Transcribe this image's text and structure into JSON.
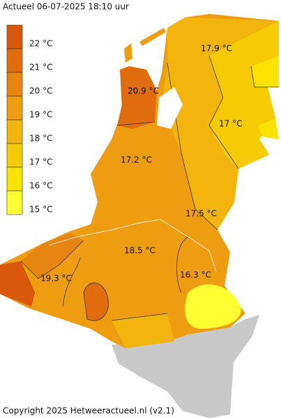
{
  "header": {
    "title": "Actueel 06-07-2025  18:10 uur"
  },
  "legend": [
    {
      "label": "22 °C",
      "color": "#d9570b"
    },
    {
      "label": "21 °C",
      "color": "#e06c0e"
    },
    {
      "label": "20 °C",
      "color": "#e88410"
    },
    {
      "label": "19 °C",
      "color": "#ee9c10"
    },
    {
      "label": "18 °C",
      "color": "#f3b50b"
    },
    {
      "label": "17 °C",
      "color": "#f7cb03"
    },
    {
      "label": "16 °C",
      "color": "#fbe200"
    },
    {
      "label": "15 °C",
      "color": "#ffff30"
    }
  ],
  "labels": [
    "17.9 °C",
    "20.9 °C",
    "17 °C",
    "17.2 °C",
    "17.5 °C",
    "18.5 °C",
    "16.3 °C",
    "19.3 °C"
  ],
  "footer": {
    "copyright": "Copyright 2025 Hetweeractueel.nl (v2.1)"
  }
}
